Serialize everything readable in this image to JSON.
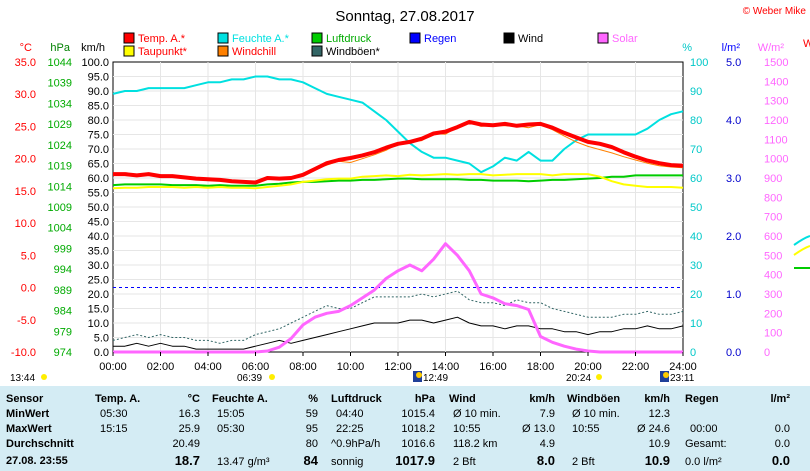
{
  "title": "Sonntag, 27.08.2017",
  "copyright": "© Weber Mike",
  "chart_data": {
    "type": "line",
    "x_hours": [
      0,
      0.5,
      1,
      1.5,
      2,
      2.5,
      3,
      3.5,
      4,
      4.5,
      5,
      5.5,
      6,
      6.5,
      7,
      7.5,
      8,
      8.5,
      9,
      9.5,
      10,
      10.5,
      11,
      11.5,
      12,
      12.5,
      13,
      13.5,
      14,
      14.5,
      15,
      15.5,
      16,
      16.5,
      17,
      17.5,
      18,
      18.5,
      19,
      19.5,
      20,
      20.5,
      21,
      21.5,
      22,
      22.5,
      23,
      23.5,
      24
    ],
    "xticks": [
      "00:00",
      "02:00",
      "04:00",
      "06:00",
      "08:00",
      "10:00",
      "12:00",
      "14:00",
      "16:00",
      "18:00",
      "20:00",
      "22:00",
      "24:00"
    ],
    "axes": {
      "temp": {
        "unit": "°C",
        "min": -10,
        "max": 35,
        "ticks": [
          "35.0",
          "30.0",
          "25.0",
          "20.0",
          "15.0",
          "10.0",
          "5.0",
          "0.0",
          "-5.0",
          "-10.0"
        ]
      },
      "pressure": {
        "unit": "hPa",
        "ticks": [
          "1044",
          "1039",
          "1034",
          "1029",
          "1024",
          "1019",
          "1014",
          "1009",
          "1004",
          "999",
          "994",
          "989",
          "984",
          "979",
          "974"
        ]
      },
      "wind": {
        "unit": "km/h",
        "min": 0,
        "max": 100,
        "ticks": [
          "100.0",
          "95.0",
          "90.0",
          "85.0",
          "80.0",
          "75.0",
          "70.0",
          "65.0",
          "60.0",
          "55.0",
          "50.0",
          "45.0",
          "40.0",
          "35.0",
          "30.0",
          "25.0",
          "20.0",
          "15.0",
          "10.0",
          "5.0",
          "0.0"
        ]
      },
      "humidity": {
        "unit": "%",
        "min": 0,
        "max": 100,
        "ticks": [
          "100",
          "90",
          "80",
          "70",
          "60",
          "50",
          "40",
          "30",
          "20",
          "10",
          "0"
        ]
      },
      "rain": {
        "unit": "l/m²",
        "min": 0,
        "max": 5,
        "ticks": [
          "5.0",
          "4.0",
          "3.0",
          "2.0",
          "1.0",
          "0.0"
        ]
      },
      "solar": {
        "unit": "W/m²",
        "min": 0,
        "max": 1500,
        "ticks": [
          "1500",
          "1400",
          "1300",
          "1200",
          "1100",
          "1000",
          "900",
          "800",
          "700",
          "600",
          "500",
          "400",
          "300",
          "200",
          "100",
          "0"
        ]
      }
    },
    "legend": [
      {
        "name": "Temp. A.*",
        "color": "#ff0000"
      },
      {
        "name": "Feuchte A.*",
        "color": "#00e0e0"
      },
      {
        "name": "Luftdruck",
        "color": "#00cc00"
      },
      {
        "name": "Regen",
        "color": "#0000ff"
      },
      {
        "name": "Wind",
        "color": "#000000"
      },
      {
        "name": "Solar",
        "color": "#ff66ff"
      },
      {
        "name": "Taupunkt*",
        "color": "#ffff00"
      },
      {
        "name": "Windchill",
        "color": "#ff8000"
      },
      {
        "name": "Windböen*",
        "color": "#336666"
      }
    ],
    "series": [
      {
        "name": "Temp. A.*",
        "axis": "temp",
        "color": "#ff0000",
        "width": 4,
        "values": [
          17.6,
          17.6,
          17.4,
          17.6,
          17.3,
          17.3,
          17.1,
          16.9,
          16.8,
          16.7,
          16.5,
          16.4,
          16.3,
          17.0,
          16.9,
          17.0,
          17.5,
          18.4,
          19.3,
          19.8,
          20.1,
          20.5,
          21.0,
          21.7,
          22.3,
          22.6,
          23.1,
          23.9,
          24.2,
          24.9,
          25.7,
          25.3,
          25.2,
          25.4,
          25.1,
          25.3,
          25.4,
          24.8,
          24.0,
          23.3,
          22.6,
          22.3,
          21.8,
          21.0,
          20.3,
          19.7,
          19.3,
          19.0,
          18.9
        ]
      },
      {
        "name": "Windchill",
        "axis": "temp",
        "color": "#ff8000",
        "width": 1,
        "values": [
          17.6,
          17.6,
          17.4,
          17.6,
          17.3,
          17.3,
          17.1,
          16.9,
          16.8,
          16.7,
          16.5,
          16.4,
          16.3,
          17.0,
          16.9,
          17.0,
          17.5,
          18.4,
          19.0,
          19.6,
          19.4,
          20.0,
          20.6,
          21.3,
          22.3,
          22.6,
          22.8,
          23.9,
          23.8,
          24.9,
          25.7,
          25.0,
          25.2,
          25.1,
          25.1,
          24.8,
          25.3,
          24.5,
          23.5,
          22.6,
          21.9,
          21.4,
          20.9,
          20.3,
          19.8,
          19.3,
          18.9,
          18.7,
          18.6
        ]
      },
      {
        "name": "Taupunkt*",
        "axis": "temp",
        "color": "#ffff00",
        "width": 2,
        "values": [
          15.4,
          15.5,
          15.5,
          15.6,
          15.6,
          15.6,
          15.5,
          15.6,
          15.5,
          15.6,
          15.5,
          15.5,
          15.4,
          15.6,
          15.8,
          16.0,
          16.4,
          16.6,
          16.8,
          16.9,
          16.9,
          17.2,
          17.3,
          17.4,
          17.3,
          17.5,
          17.4,
          17.5,
          17.6,
          17.5,
          17.6,
          17.6,
          17.4,
          17.5,
          17.6,
          17.6,
          17.6,
          17.4,
          17.6,
          17.6,
          17.6,
          17.2,
          16.5,
          16.0,
          15.8,
          15.6,
          15.6,
          15.6,
          15.5
        ]
      },
      {
        "name": "Luftdruck",
        "axis": "temp",
        "color": "#00cc00",
        "width": 2,
        "values": [
          15.9,
          16.0,
          16.0,
          16.0,
          16.0,
          15.9,
          15.9,
          15.9,
          15.8,
          15.9,
          15.8,
          15.8,
          15.8,
          16.0,
          16.1,
          16.3,
          16.4,
          16.4,
          16.5,
          16.6,
          16.6,
          16.7,
          16.7,
          16.8,
          16.9,
          16.9,
          16.8,
          16.8,
          16.8,
          16.8,
          16.7,
          16.7,
          16.6,
          16.6,
          16.6,
          16.5,
          16.6,
          16.7,
          16.7,
          16.8,
          16.9,
          17.0,
          17.2,
          17.2,
          17.4,
          17.4,
          17.4,
          17.4,
          17.4
        ]
      },
      {
        "name": "Feuchte A.*",
        "axis": "humidity",
        "color": "#00e0e0",
        "width": 2,
        "values": [
          89,
          90,
          90,
          91,
          91,
          91,
          91,
          92,
          93,
          93,
          94,
          94,
          95,
          95,
          94,
          94,
          93,
          91,
          89,
          88,
          87,
          86,
          83,
          80,
          76,
          72,
          69,
          67,
          67,
          66,
          65,
          62,
          64,
          67,
          66,
          69,
          66,
          66,
          70,
          73,
          75,
          75,
          75,
          75,
          75,
          77,
          80,
          82,
          83
        ]
      },
      {
        "name": "Windböen*",
        "axis": "wind",
        "color": "#336666",
        "width": 1,
        "dashed": true,
        "values": [
          4,
          5,
          6,
          5,
          6,
          5,
          5,
          4,
          4,
          3,
          4,
          4,
          6,
          7,
          8,
          10,
          12,
          14,
          16,
          15,
          15,
          17,
          19,
          19,
          19,
          19,
          20,
          19,
          20,
          21,
          18,
          17,
          17,
          16,
          18,
          17,
          17,
          15,
          14,
          13,
          12,
          12,
          12,
          13,
          13,
          14,
          13,
          13,
          14
        ]
      },
      {
        "name": "Wind",
        "axis": "wind",
        "color": "#000000",
        "width": 1,
        "values": [
          2,
          2,
          3,
          2,
          3,
          2,
          2,
          1,
          1,
          1,
          1,
          1,
          2,
          3,
          4,
          3,
          4,
          5,
          6,
          7,
          8,
          9,
          10,
          10,
          10,
          11,
          11,
          10,
          11,
          12,
          10,
          9,
          9,
          8,
          9,
          9,
          8,
          8,
          7,
          7,
          6,
          7,
          7,
          8,
          8,
          9,
          8,
          8,
          9
        ]
      },
      {
        "name": "Solar",
        "axis": "solar",
        "color": "#ff66ff",
        "width": 3,
        "values": [
          0,
          0,
          0,
          0,
          0,
          0,
          0,
          0,
          0,
          0,
          0,
          0,
          0,
          5,
          25,
          70,
          140,
          180,
          200,
          210,
          240,
          280,
          320,
          380,
          420,
          450,
          420,
          480,
          560,
          500,
          420,
          300,
          280,
          250,
          240,
          220,
          80,
          50,
          30,
          15,
          5,
          0,
          0,
          0,
          0,
          0,
          0,
          0,
          0
        ]
      }
    ],
    "reference_line": {
      "axis": "temp",
      "value": 0.0,
      "color": "#0000ff"
    }
  },
  "sun": {
    "rise": "06:39",
    "set": "20:24"
  },
  "moon": {
    "rise": "12:49",
    "set": "23:11"
  },
  "day_marks": {
    "left": "13:44"
  },
  "stats": {
    "headers": [
      "Sensor",
      "Temp. A.",
      "°C",
      "Feuchte A.",
      "%",
      "Luftdruck",
      "hPa",
      "Wind",
      "km/h",
      "Windböen",
      "km/h",
      "Regen",
      "l/m²"
    ],
    "min_label": "MinWert",
    "max_label": "MaxWert",
    "avg_label": "Durchschnitt",
    "cur_label": "27.08. 23:55",
    "temp": {
      "min_time": "05:30",
      "min": "16.3",
      "max_time": "15:15",
      "max": "25.9",
      "avg": "20.49",
      "cur": "18.7"
    },
    "hum": {
      "min_time": "15:05",
      "min": "59",
      "max_time": "05:30",
      "max": "95",
      "avg": "80",
      "cur_abs": "13.47 g/m³",
      "cur": "84"
    },
    "press": {
      "min_time": "04:40",
      "min": "1015.4",
      "max_time": "22:25",
      "max": "1018.2",
      "trend": "^0.9hPa/h",
      "avg": "1016.6",
      "cur_txt": "sonnig",
      "cur": "1017.9"
    },
    "wind": {
      "r1a": "Ø 10 min.",
      "r1b": "7.9",
      "r2a": "10:55",
      "r2b": "Ø 13.0",
      "r3a": "118.2 km",
      "r3b": "4.9",
      "r4a": "2 Bft",
      "r4b": "8.0"
    },
    "gust": {
      "r1a": "Ø 10 min.",
      "r1b": "12.3",
      "r2a": "10:55",
      "r2b": "Ø 24.6",
      "r3b": "10.9",
      "r4a": "2 Bft",
      "r4b": "10.9"
    },
    "rain": {
      "r2a": "00:00",
      "r2b": "0.0",
      "r3a": "Gesamt:",
      "r3b": "0.0",
      "r4a": "0.0 l/m²",
      "r4b": "0.0"
    }
  }
}
